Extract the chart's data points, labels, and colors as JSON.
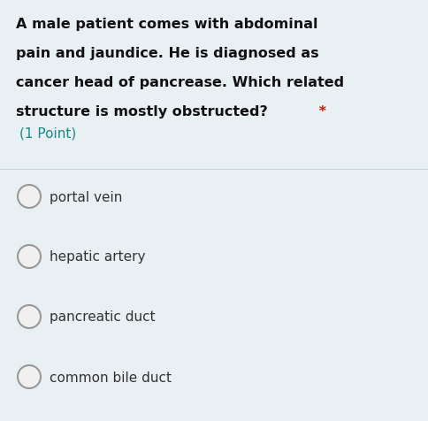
{
  "bg_color": "#e8f0f3",
  "question_lines": [
    "A male patient comes with abdominal",
    "pain and jaundice. He is diagnosed as",
    "cancer head of pancrease. Which related",
    "structure is mostly obstructed?"
  ],
  "asterisk": " *",
  "points_text": "(1 Point)",
  "options": [
    "portal vein",
    "hepatic artery",
    "pancreatic duct",
    "common bile duct"
  ],
  "question_font_size": 11.5,
  "points_font_size": 11,
  "option_font_size": 11,
  "question_color": "#111111",
  "asterisk_color": "#cc2200",
  "points_color": "#1a8888",
  "option_text_color": "#333333",
  "circle_edge_color": "#999999",
  "circle_face_color": "#f0f0f0",
  "divider_color": "#c5d5da",
  "fig_width": 4.84,
  "fig_height": 4.77,
  "dpi": 100
}
